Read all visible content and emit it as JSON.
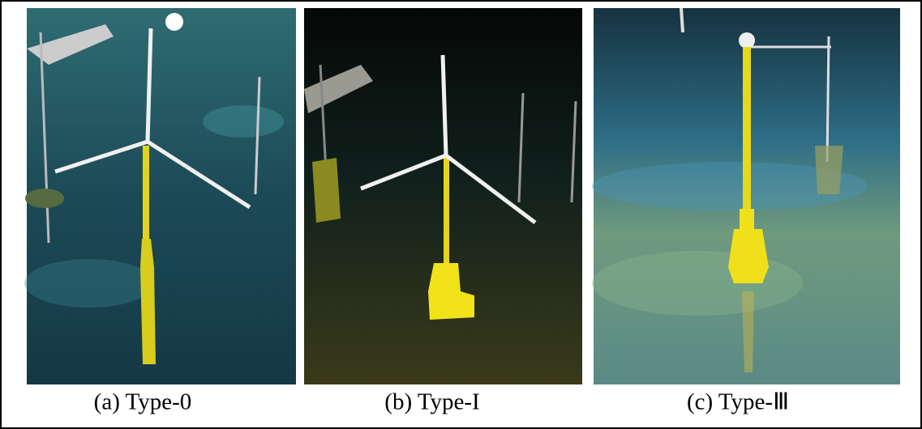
{
  "figure": {
    "panels": [
      {
        "caption": "(a) Type-0"
      },
      {
        "caption": "(b) Type-I"
      },
      {
        "caption": "(c) Type-Ⅲ"
      }
    ]
  }
}
